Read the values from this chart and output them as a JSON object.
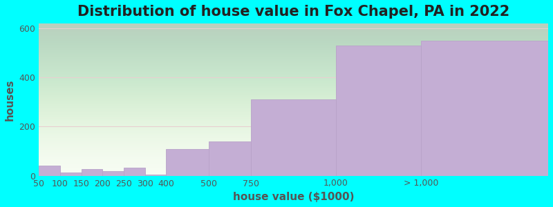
{
  "title": "Distribution of house value in Fox Chapel, PA in 2022",
  "xlabel": "house value ($1000)",
  "ylabel": "houses",
  "background_color": "#00FFFF",
  "bar_color": "#c4aed4",
  "bar_edge_color": "#b8a2c8",
  "categories": [
    "50",
    "100",
    "150",
    "200",
    "250",
    "300",
    "400",
    "500",
    "750",
    "1,000",
    "> 1,000"
  ],
  "values": [
    42,
    12,
    28,
    20,
    32,
    5,
    110,
    140,
    310,
    530,
    550
  ],
  "ylim": [
    0,
    620
  ],
  "yticks": [
    0,
    200,
    400,
    600
  ],
  "grid_color": "#e8d0d0",
  "title_fontsize": 15,
  "axis_label_fontsize": 11,
  "tick_fontsize": 9,
  "title_color": "#222222",
  "axis_label_color": "#555555",
  "tick_color": "#555555",
  "plot_bg_top": "#e8f2e0",
  "plot_bg_bottom": "#f8fdf4"
}
